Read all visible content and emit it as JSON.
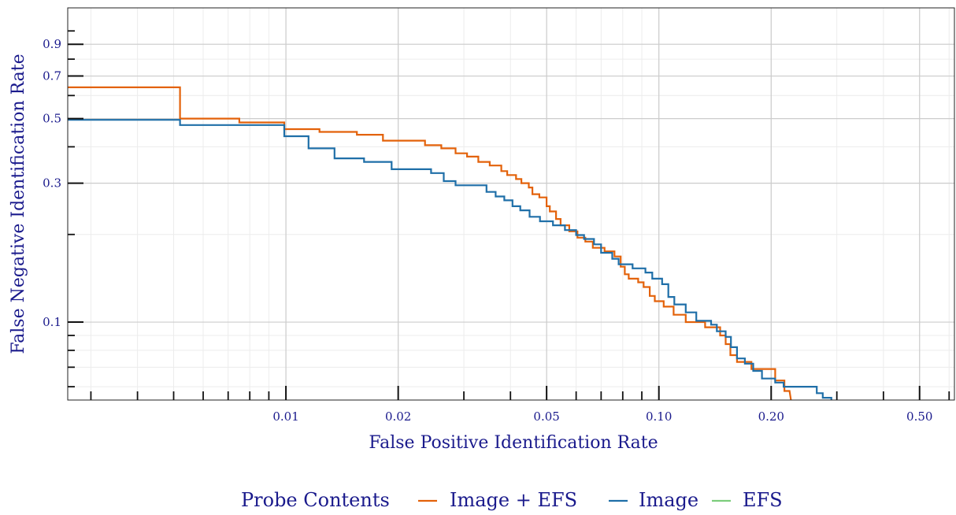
{
  "chart_data": {
    "type": "line",
    "xlabel": "False Positive Identification Rate",
    "ylabel": "False Negative Identification Rate",
    "x_scale": "log",
    "y_scale": "log",
    "xlim": [
      0.0026,
      0.62
    ],
    "ylim": [
      0.054,
      1.2
    ],
    "x_ticks": [
      {
        "value": 0.01,
        "label": "0.01"
      },
      {
        "value": 0.02,
        "label": "0.02"
      },
      {
        "value": 0.05,
        "label": "0.05"
      },
      {
        "value": 0.1,
        "label": "0.10"
      },
      {
        "value": 0.2,
        "label": "0.20"
      },
      {
        "value": 0.5,
        "label": "0.50"
      }
    ],
    "y_ticks": [
      {
        "value": 0.1,
        "label": "0.1"
      },
      {
        "value": 0.3,
        "label": "0.3"
      },
      {
        "value": 0.5,
        "label": "0.5"
      },
      {
        "value": 0.7,
        "label": "0.7"
      },
      {
        "value": 0.9,
        "label": "0.9"
      }
    ],
    "grid": true,
    "legend": {
      "title": "Probe Contents",
      "placement": "bottom-center"
    },
    "series": [
      {
        "name": "Image + EFS",
        "color": "#e3620a",
        "points": [
          [
            0.0026,
            0.64
          ],
          [
            0.0052,
            0.64
          ],
          [
            0.0052,
            0.5
          ],
          [
            0.0075,
            0.5
          ],
          [
            0.0075,
            0.485
          ],
          [
            0.0099,
            0.485
          ],
          [
            0.0099,
            0.46
          ],
          [
            0.0123,
            0.46
          ],
          [
            0.0123,
            0.45
          ],
          [
            0.0155,
            0.45
          ],
          [
            0.0155,
            0.44
          ],
          [
            0.0182,
            0.44
          ],
          [
            0.0182,
            0.42
          ],
          [
            0.0236,
            0.42
          ],
          [
            0.0236,
            0.405
          ],
          [
            0.0261,
            0.405
          ],
          [
            0.0261,
            0.395
          ],
          [
            0.0285,
            0.395
          ],
          [
            0.0285,
            0.38
          ],
          [
            0.0306,
            0.38
          ],
          [
            0.0306,
            0.37
          ],
          [
            0.0328,
            0.37
          ],
          [
            0.0328,
            0.355
          ],
          [
            0.0352,
            0.355
          ],
          [
            0.0352,
            0.345
          ],
          [
            0.0378,
            0.345
          ],
          [
            0.0378,
            0.33
          ],
          [
            0.0392,
            0.33
          ],
          [
            0.0392,
            0.32
          ],
          [
            0.0414,
            0.32
          ],
          [
            0.0414,
            0.31
          ],
          [
            0.0428,
            0.31
          ],
          [
            0.0428,
            0.3
          ],
          [
            0.0448,
            0.3
          ],
          [
            0.0448,
            0.29
          ],
          [
            0.0458,
            0.29
          ],
          [
            0.0458,
            0.275
          ],
          [
            0.0478,
            0.275
          ],
          [
            0.0478,
            0.268
          ],
          [
            0.05,
            0.268
          ],
          [
            0.05,
            0.25
          ],
          [
            0.051,
            0.25
          ],
          [
            0.051,
            0.24
          ],
          [
            0.053,
            0.24
          ],
          [
            0.053,
            0.226
          ],
          [
            0.0545,
            0.226
          ],
          [
            0.0545,
            0.215
          ],
          [
            0.0575,
            0.215
          ],
          [
            0.0575,
            0.205
          ],
          [
            0.0605,
            0.205
          ],
          [
            0.0605,
            0.195
          ],
          [
            0.0635,
            0.195
          ],
          [
            0.0635,
            0.189
          ],
          [
            0.0665,
            0.189
          ],
          [
            0.0665,
            0.18
          ],
          [
            0.0715,
            0.18
          ],
          [
            0.0715,
            0.175
          ],
          [
            0.076,
            0.175
          ],
          [
            0.076,
            0.168
          ],
          [
            0.079,
            0.168
          ],
          [
            0.079,
            0.155
          ],
          [
            0.081,
            0.155
          ],
          [
            0.081,
            0.146
          ],
          [
            0.083,
            0.146
          ],
          [
            0.083,
            0.141
          ],
          [
            0.088,
            0.141
          ],
          [
            0.088,
            0.137
          ],
          [
            0.091,
            0.137
          ],
          [
            0.091,
            0.132
          ],
          [
            0.0945,
            0.132
          ],
          [
            0.0945,
            0.123
          ],
          [
            0.0975,
            0.123
          ],
          [
            0.0975,
            0.118
          ],
          [
            0.103,
            0.118
          ],
          [
            0.103,
            0.113
          ],
          [
            0.1095,
            0.113
          ],
          [
            0.1095,
            0.106
          ],
          [
            0.118,
            0.106
          ],
          [
            0.118,
            0.1
          ],
          [
            0.133,
            0.1
          ],
          [
            0.133,
            0.096
          ],
          [
            0.146,
            0.096
          ],
          [
            0.146,
            0.09
          ],
          [
            0.151,
            0.09
          ],
          [
            0.151,
            0.084
          ],
          [
            0.1555,
            0.084
          ],
          [
            0.1555,
            0.077
          ],
          [
            0.162,
            0.077
          ],
          [
            0.162,
            0.073
          ],
          [
            0.177,
            0.073
          ],
          [
            0.177,
            0.069
          ],
          [
            0.205,
            0.069
          ],
          [
            0.205,
            0.063
          ],
          [
            0.217,
            0.063
          ],
          [
            0.217,
            0.058
          ],
          [
            0.224,
            0.058
          ],
          [
            0.226,
            0.054
          ]
        ]
      },
      {
        "name": "Image",
        "color": "#1f6fa8",
        "points": [
          [
            0.0026,
            0.495
          ],
          [
            0.0052,
            0.495
          ],
          [
            0.0052,
            0.475
          ],
          [
            0.0099,
            0.475
          ],
          [
            0.0099,
            0.435
          ],
          [
            0.0115,
            0.435
          ],
          [
            0.0115,
            0.395
          ],
          [
            0.0135,
            0.395
          ],
          [
            0.0135,
            0.365
          ],
          [
            0.0162,
            0.365
          ],
          [
            0.0162,
            0.355
          ],
          [
            0.0192,
            0.355
          ],
          [
            0.0192,
            0.335
          ],
          [
            0.0245,
            0.335
          ],
          [
            0.0245,
            0.325
          ],
          [
            0.0265,
            0.325
          ],
          [
            0.0265,
            0.305
          ],
          [
            0.0285,
            0.305
          ],
          [
            0.0285,
            0.295
          ],
          [
            0.0345,
            0.295
          ],
          [
            0.0345,
            0.28
          ],
          [
            0.0365,
            0.28
          ],
          [
            0.0365,
            0.27
          ],
          [
            0.0385,
            0.27
          ],
          [
            0.0385,
            0.262
          ],
          [
            0.0405,
            0.262
          ],
          [
            0.0405,
            0.25
          ],
          [
            0.0425,
            0.25
          ],
          [
            0.0425,
            0.242
          ],
          [
            0.045,
            0.242
          ],
          [
            0.045,
            0.23
          ],
          [
            0.048,
            0.23
          ],
          [
            0.048,
            0.222
          ],
          [
            0.052,
            0.222
          ],
          [
            0.052,
            0.215
          ],
          [
            0.056,
            0.215
          ],
          [
            0.056,
            0.207
          ],
          [
            0.06,
            0.207
          ],
          [
            0.06,
            0.199
          ],
          [
            0.063,
            0.199
          ],
          [
            0.063,
            0.193
          ],
          [
            0.067,
            0.193
          ],
          [
            0.067,
            0.185
          ],
          [
            0.07,
            0.185
          ],
          [
            0.07,
            0.173
          ],
          [
            0.075,
            0.173
          ],
          [
            0.075,
            0.165
          ],
          [
            0.078,
            0.165
          ],
          [
            0.078,
            0.158
          ],
          [
            0.085,
            0.158
          ],
          [
            0.085,
            0.153
          ],
          [
            0.092,
            0.153
          ],
          [
            0.092,
            0.148
          ],
          [
            0.096,
            0.148
          ],
          [
            0.096,
            0.141
          ],
          [
            0.102,
            0.141
          ],
          [
            0.102,
            0.135
          ],
          [
            0.106,
            0.135
          ],
          [
            0.106,
            0.122
          ],
          [
            0.11,
            0.122
          ],
          [
            0.11,
            0.115
          ],
          [
            0.118,
            0.115
          ],
          [
            0.118,
            0.108
          ],
          [
            0.126,
            0.108
          ],
          [
            0.126,
            0.101
          ],
          [
            0.138,
            0.101
          ],
          [
            0.138,
            0.098
          ],
          [
            0.143,
            0.098
          ],
          [
            0.143,
            0.093
          ],
          [
            0.151,
            0.093
          ],
          [
            0.151,
            0.089
          ],
          [
            0.156,
            0.089
          ],
          [
            0.156,
            0.082
          ],
          [
            0.162,
            0.082
          ],
          [
            0.162,
            0.075
          ],
          [
            0.17,
            0.075
          ],
          [
            0.17,
            0.072
          ],
          [
            0.179,
            0.072
          ],
          [
            0.179,
            0.068
          ],
          [
            0.189,
            0.068
          ],
          [
            0.189,
            0.064
          ],
          [
            0.205,
            0.064
          ],
          [
            0.205,
            0.062
          ],
          [
            0.216,
            0.062
          ],
          [
            0.216,
            0.06
          ],
          [
            0.265,
            0.06
          ],
          [
            0.265,
            0.057
          ],
          [
            0.275,
            0.057
          ],
          [
            0.275,
            0.055
          ],
          [
            0.29,
            0.055
          ],
          [
            0.29,
            0.054
          ]
        ]
      },
      {
        "name": "EFS",
        "color": "#7ccd7c",
        "points": []
      }
    ]
  }
}
